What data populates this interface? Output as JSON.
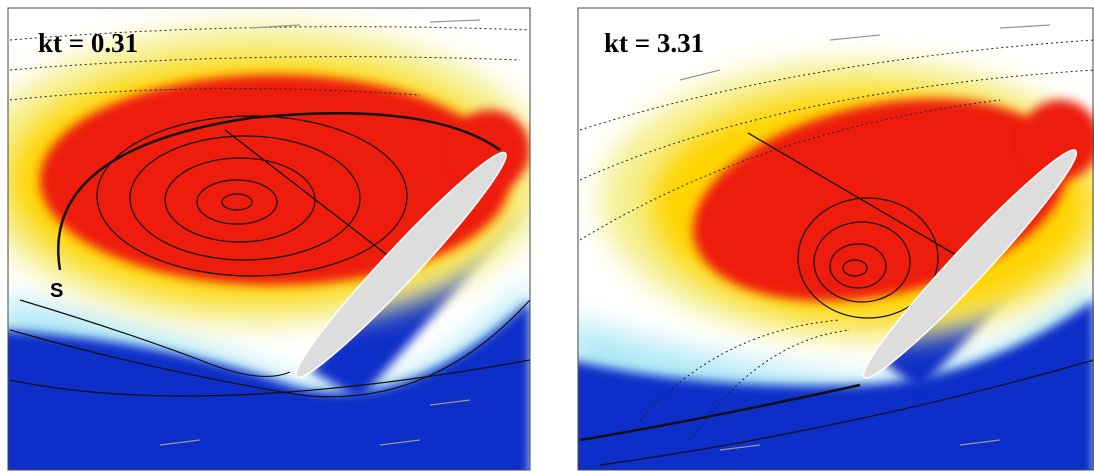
{
  "panels": [
    {
      "label": "kt = 0.31",
      "annotation": "S"
    },
    {
      "label": "kt = 3.31"
    }
  ]
}
